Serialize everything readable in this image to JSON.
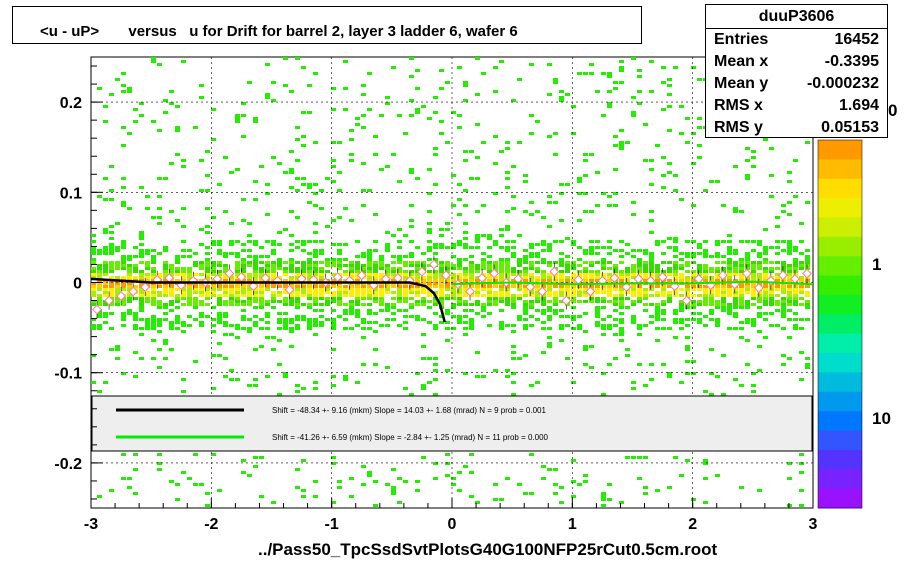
{
  "title": "<u - uP>       versus   u for Drift for barrel 2, layer 3 ladder 6, wafer 6",
  "footer": "../Pass50_TpcSsdSvtPlotsG40G100NFP25rCut0.5cm.root",
  "stats": {
    "name": "duuP3606",
    "rows": [
      {
        "label": "Entries",
        "value": "16452"
      },
      {
        "label": "Mean x",
        "value": "-0.3395"
      },
      {
        "label": "Mean y",
        "value": "-0.000232"
      },
      {
        "label": "RMS x",
        "value": "1.694"
      },
      {
        "label": "RMS y",
        "value": "0.05153"
      }
    ]
  },
  "colors": {
    "fit_black": "#000000",
    "fit_green": "#00ee00",
    "marker": "#ff7799"
  },
  "chart_data": {
    "type": "heatmap",
    "xlim": [
      -3,
      3
    ],
    "ylim": [
      -0.25,
      0.25
    ],
    "x_ticks": [
      "-3",
      "-2",
      "-1",
      "0",
      "1",
      "2",
      "3"
    ],
    "y_ticks": [
      "0.2",
      "0.1",
      "0",
      "-0.1",
      "-0.2"
    ],
    "grid": true,
    "colorbar_labels": [
      "0",
      "1",
      "10"
    ],
    "fits": [
      {
        "text": "Shift =   -48.34 +- 9.16 (mkm) Slope =     14.03 +- 1.68 (mrad)  N = 9 prob = 0.001",
        "x": [
          -3.0,
          -2.5,
          -2.0,
          -1.5,
          -1.0,
          -0.6,
          -0.35,
          -0.22,
          -0.15,
          -0.1,
          -0.06
        ],
        "y": [
          0.004,
          0.0,
          0.0,
          0.0,
          0.0,
          0.0,
          0.0,
          -0.004,
          -0.012,
          -0.024,
          -0.044
        ]
      },
      {
        "text": "Shift =   -41.26 +- 6.59 (mkm) Slope =     -2.84 +- 1.25 (mrad)  N = 11 prob = 0.000",
        "x": [
          0.0,
          0.15,
          0.5,
          1.0,
          1.5,
          2.0,
          2.5,
          3.0
        ],
        "y": [
          -0.002,
          -0.001,
          0.0,
          -0.002,
          -0.001,
          -0.001,
          0.001,
          -0.002
        ]
      }
    ],
    "profile_points": [
      [
        -2.95,
        -0.03
      ],
      [
        -2.85,
        -0.02
      ],
      [
        -2.75,
        -0.015
      ],
      [
        -2.65,
        -0.01
      ],
      [
        -2.55,
        -0.005
      ],
      [
        -2.45,
        0.003
      ],
      [
        -2.35,
        0.005
      ],
      [
        -2.25,
        -0.003
      ],
      [
        -2.15,
        0.002
      ],
      [
        -2.05,
        0.0
      ],
      [
        -1.95,
        0.004
      ],
      [
        -1.85,
        0.01
      ],
      [
        -1.75,
        0.006
      ],
      [
        -1.65,
        -0.004
      ],
      [
        -1.55,
        0.005
      ],
      [
        -1.45,
        0.002
      ],
      [
        -1.35,
        -0.008
      ],
      [
        -1.25,
        0.004
      ],
      [
        -1.15,
        0.003
      ],
      [
        -1.05,
        0.0
      ],
      [
        -0.95,
        0.006
      ],
      [
        -0.85,
        0.002
      ],
      [
        -0.75,
        0.008
      ],
      [
        -0.65,
        -0.003
      ],
      [
        -0.55,
        0.004
      ],
      [
        -0.45,
        0.005
      ],
      [
        -0.35,
        0.002
      ],
      [
        -0.25,
        0.012
      ],
      [
        -0.15,
        0.02
      ],
      [
        -0.05,
        0.008
      ],
      [
        0.05,
        -0.002
      ],
      [
        0.15,
        -0.01
      ],
      [
        0.25,
        0.005
      ],
      [
        0.35,
        0.01
      ],
      [
        0.45,
        0.0
      ],
      [
        0.55,
        0.004
      ],
      [
        0.65,
        -0.005
      ],
      [
        0.75,
        -0.01
      ],
      [
        0.85,
        0.012
      ],
      [
        0.95,
        -0.02
      ],
      [
        1.05,
        0.003
      ],
      [
        1.15,
        -0.01
      ],
      [
        1.25,
        0.002
      ],
      [
        1.35,
        0.005
      ],
      [
        1.45,
        -0.005
      ],
      [
        1.55,
        0.004
      ],
      [
        1.65,
        0.002
      ],
      [
        1.75,
        0.006
      ],
      [
        1.85,
        -0.004
      ],
      [
        1.95,
        -0.02
      ],
      [
        2.05,
        0.004
      ],
      [
        2.15,
        -0.003
      ],
      [
        2.25,
        0.008
      ],
      [
        2.35,
        -0.002
      ],
      [
        2.45,
        0.01
      ],
      [
        2.55,
        -0.006
      ],
      [
        2.65,
        0.002
      ],
      [
        2.75,
        0.008
      ],
      [
        2.85,
        0.004
      ],
      [
        2.95,
        0.01
      ]
    ]
  }
}
